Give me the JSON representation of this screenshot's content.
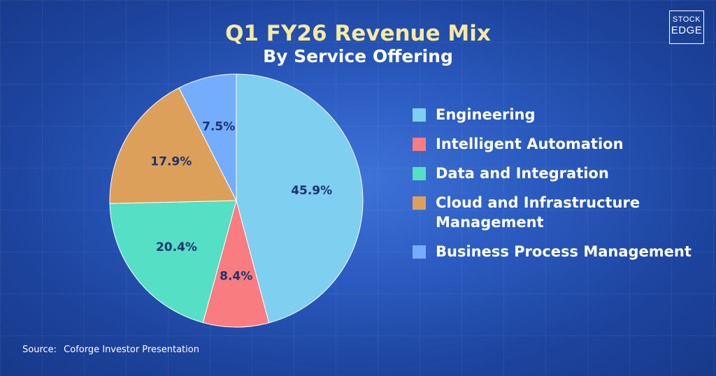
{
  "header": {
    "title": "Q1 FY26 Revenue Mix",
    "subtitle": "By Service Offering"
  },
  "logo": {
    "line1": "STOCK",
    "line2": "EDGE"
  },
  "source": {
    "label": "Source:",
    "text": "Coforge Investor Presentation"
  },
  "chart_data": {
    "type": "pie",
    "title": "Q1 FY26 Revenue Mix",
    "subtitle": "By Service Offering",
    "unit": "%",
    "legend_position": "right",
    "start_angle_deg": 0,
    "direction": "clockwise",
    "slices": [
      {
        "name": "Engineering",
        "value": 45.9,
        "label": "45.9%",
        "color": "#7ecff0"
      },
      {
        "name": "Intelligent Automation",
        "value": 8.4,
        "label": "8.4%",
        "color": "#f97c80"
      },
      {
        "name": "Data and Integration",
        "value": 20.4,
        "label": "20.4%",
        "color": "#55dfc4"
      },
      {
        "name": "Cloud and Infrastructure Management",
        "value": 17.9,
        "label": "17.9%",
        "color": "#dda05a"
      },
      {
        "name": "Business Process Management",
        "value": 7.5,
        "label": "7.5%",
        "color": "#74adfc"
      }
    ]
  }
}
